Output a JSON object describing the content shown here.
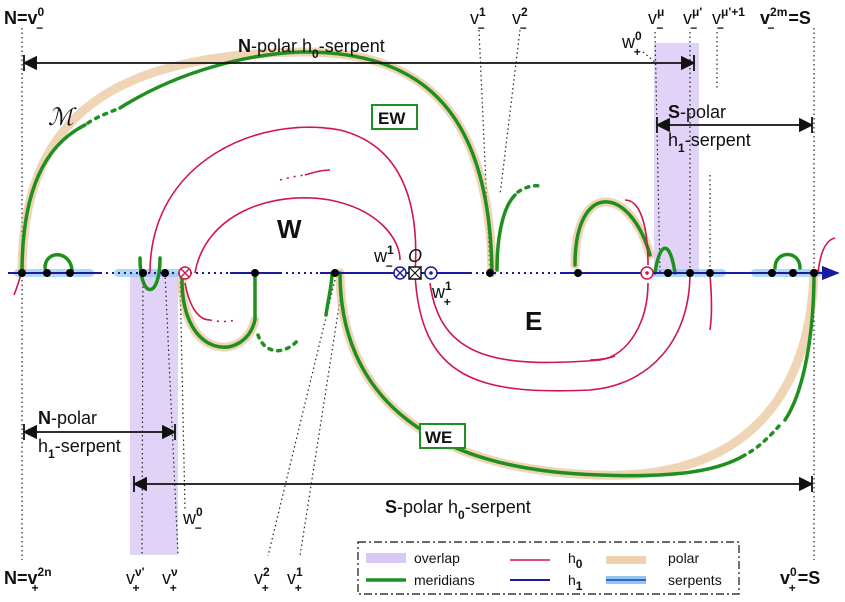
{
  "corner_labels": {
    "top_left_main": "N=v",
    "top_left_sup": "0",
    "top_left_sub": "−",
    "top_right_main": "v",
    "top_right_sup": "2m",
    "top_right_sub": "−",
    "top_right_tail": "=S",
    "bottom_left_main": "N=v",
    "bottom_left_sup": "2n",
    "bottom_left_sub": "+",
    "bottom_right_main": "v",
    "bottom_right_sup": "0",
    "bottom_right_sub": "+",
    "bottom_right_tail": "=S"
  },
  "top_vertex_labels": [
    {
      "main": "v",
      "sup": "1",
      "sub": "−"
    },
    {
      "main": "v",
      "sup": "2",
      "sub": "−"
    },
    {
      "main": "v",
      "sup": "μ",
      "sub": "−"
    },
    {
      "main": "v",
      "sup": "μ'",
      "sub": "−"
    },
    {
      "main": "v",
      "sup": "μ'+1",
      "sub": "−"
    }
  ],
  "bottom_vertex_labels": [
    {
      "main": "v",
      "sup": "ν'",
      "sub": "+"
    },
    {
      "main": "v",
      "sup": "ν",
      "sub": "+"
    },
    {
      "main": "v",
      "sup": "2",
      "sub": "+"
    },
    {
      "main": "v",
      "sup": "1",
      "sub": "+"
    }
  ],
  "w_labels": {
    "w0_plus": {
      "main": "w",
      "sup": "0",
      "sub": "+"
    },
    "w1_minus": {
      "main": "w",
      "sup": "1",
      "sub": "−"
    },
    "w1_plus": {
      "main": "w",
      "sup": "1",
      "sub": "+"
    },
    "w0_minus": {
      "main": "w",
      "sup": "0",
      "sub": "−"
    },
    "origin": "O"
  },
  "serpents": {
    "n_polar_h0": {
      "bold": "N",
      "text": "-polar h",
      "sub": "0",
      "tail": "-serpent"
    },
    "s_polar_h1_line1": {
      "bold": "S",
      "text": "-polar"
    },
    "s_polar_h1_line2": {
      "text": "h",
      "sub": "1",
      "tail": "-serpent"
    },
    "n_polar_h1_line1": {
      "bold": "N",
      "text": "-polar"
    },
    "n_polar_h1_line2": {
      "text": "h",
      "sub": "1",
      "tail": "-serpent"
    },
    "s_polar_h0": {
      "bold": "S",
      "text": "-polar h",
      "sub": "0",
      "tail": "-serpent"
    }
  },
  "regions": {
    "west": "W",
    "east": "E",
    "manifold": "ℳ"
  },
  "boxes": {
    "ew": "EW",
    "we": "WE"
  },
  "legend": {
    "overlap": "overlap",
    "meridians": "meridians",
    "h0": "h",
    "h0_sub": "0",
    "h1": "h",
    "h1_sub": "1",
    "polar": "polar",
    "serpents": "serpents"
  },
  "colors": {
    "meridian": "#1f8f1f",
    "h0": "#d0164a",
    "h1": "#1a1aa0",
    "polar": "#e3b07a",
    "serpent_highlight": "#8ec8f0",
    "overlap": "#d9c8f5"
  }
}
